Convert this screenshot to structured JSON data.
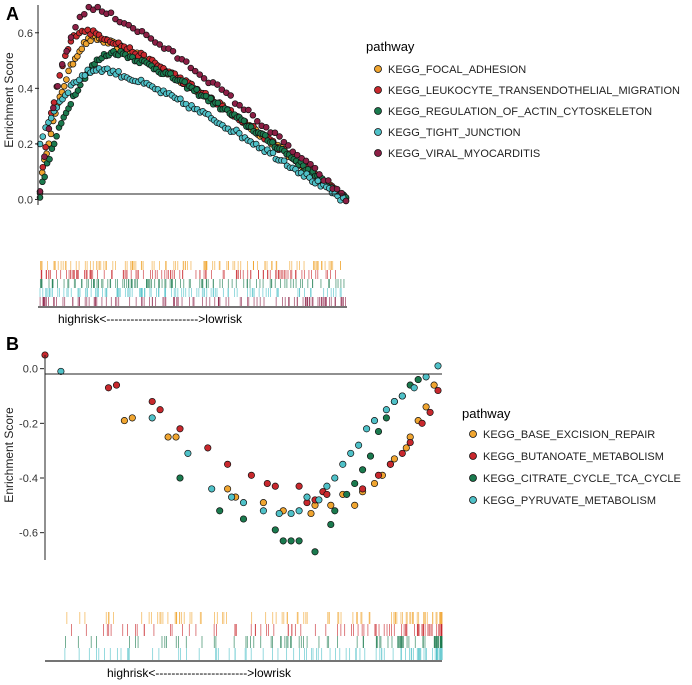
{
  "colors": {
    "orange": "#f0a530",
    "red": "#c8282d",
    "green": "#1a7a4e",
    "cyan": "#4fc1c8",
    "maroon": "#8c1f45"
  },
  "chart_data": [
    {
      "panel_label": "A",
      "type": "scatter",
      "ylabel": "Enrichment Score",
      "ylim": [
        -0.02,
        0.7
      ],
      "yticks": [
        0.0,
        0.2,
        0.4,
        0.6
      ],
      "ytick_labels": [
        "0.0",
        "0.2",
        "0.4",
        "0.6"
      ],
      "xlim": [
        0,
        1
      ],
      "legend_title": "pathway",
      "legend_position": "right",
      "axis_label": "highrisk<----------------------->lowrisk",
      "series": [
        {
          "name": "KEGG_FOCAL_ADHESION",
          "color": "#f0a530",
          "peak_x": 0.18,
          "peak": 0.58,
          "start": 0.03,
          "end": 0.0,
          "n": 140
        },
        {
          "name": "KEGG_LEUKOCYTE_TRANSENDOTHELIAL_MIGRATION",
          "color": "#c8282d",
          "peak_x": 0.14,
          "peak": 0.61,
          "start": 0.02,
          "end": 0.0,
          "n": 110
        },
        {
          "name": "KEGG_REGULATION_OF_ACTIN_CYTOSKELETON",
          "color": "#1a7a4e",
          "peak_x": 0.25,
          "peak": 0.53,
          "start": 0.01,
          "end": 0.0,
          "n": 130
        },
        {
          "name": "KEGG_TIGHT_JUNCTION",
          "color": "#4fc1c8",
          "peak_x": 0.2,
          "peak": 0.47,
          "start": 0.2,
          "end": -0.01,
          "n": 110
        },
        {
          "name": "KEGG_VIRAL_MYOCARDITIS",
          "color": "#8c1f45",
          "peak_x": 0.17,
          "peak": 0.69,
          "start": 0.02,
          "end": 0.0,
          "n": 70
        }
      ]
    },
    {
      "panel_label": "B",
      "type": "scatter",
      "ylabel": "Enrichment Score",
      "ylim": [
        -0.7,
        0.05
      ],
      "yticks": [
        0.0,
        -0.2,
        -0.4,
        -0.6
      ],
      "ytick_labels": [
        "0.0",
        "-0.2",
        "-0.4",
        "-0.6"
      ],
      "xlim": [
        0,
        1
      ],
      "legend_title": "pathway",
      "legend_position": "right",
      "axis_label": "highrisk<----------------------->lowrisk",
      "series": [
        {
          "name": "KEGG_BASE_EXCISION_REPAIR",
          "color": "#f0a530",
          "x": [
            0.2,
            0.22,
            0.31,
            0.33,
            0.46,
            0.48,
            0.55,
            0.6,
            0.67,
            0.68,
            0.72,
            0.75,
            0.78,
            0.8,
            0.83,
            0.85,
            0.87,
            0.88,
            0.91,
            0.92,
            0.94,
            0.96,
            0.98
          ],
          "y": [
            -0.19,
            -0.18,
            -0.25,
            -0.25,
            -0.44,
            -0.47,
            -0.49,
            -0.52,
            -0.53,
            -0.5,
            -0.5,
            -0.46,
            -0.5,
            -0.45,
            -0.42,
            -0.39,
            -0.35,
            -0.33,
            -0.29,
            -0.25,
            -0.19,
            -0.14,
            -0.06
          ]
        },
        {
          "name": "KEGG_BUTANOATE_METABOLISM",
          "color": "#c8282d",
          "x": [
            0.0,
            0.16,
            0.18,
            0.27,
            0.29,
            0.34,
            0.41,
            0.46,
            0.52,
            0.56,
            0.58,
            0.64,
            0.66,
            0.68,
            0.7,
            0.71,
            0.8,
            0.84,
            0.87,
            0.9,
            0.92,
            0.95,
            0.97,
            0.99
          ],
          "y": [
            0.05,
            -0.07,
            -0.06,
            -0.12,
            -0.15,
            -0.22,
            -0.29,
            -0.35,
            -0.39,
            -0.42,
            -0.43,
            -0.43,
            -0.49,
            -0.48,
            -0.45,
            -0.46,
            -0.44,
            -0.39,
            -0.35,
            -0.31,
            -0.27,
            -0.2,
            -0.16,
            -0.08
          ]
        },
        {
          "name": "KEGG_CITRATE_CYCLE_TCA_CYCLE",
          "color": "#1a7a4e",
          "x": [
            0.34,
            0.44,
            0.5,
            0.58,
            0.6,
            0.62,
            0.64,
            0.68,
            0.72,
            0.73,
            0.76,
            0.78,
            0.8,
            0.82,
            0.84,
            0.86,
            0.88,
            0.9,
            0.92,
            0.94
          ],
          "y": [
            -0.4,
            -0.52,
            -0.55,
            -0.59,
            -0.63,
            -0.63,
            -0.63,
            -0.67,
            -0.57,
            -0.52,
            -0.46,
            -0.42,
            -0.37,
            -0.32,
            -0.23,
            -0.18,
            -0.12,
            -0.1,
            -0.06,
            -0.04
          ]
        },
        {
          "name": "KEGG_PYRUVATE_METABOLISM",
          "color": "#4fc1c8",
          "x": [
            0.04,
            0.27,
            0.36,
            0.42,
            0.47,
            0.5,
            0.55,
            0.59,
            0.62,
            0.64,
            0.66,
            0.69,
            0.71,
            0.73,
            0.75,
            0.77,
            0.79,
            0.81,
            0.83,
            0.86,
            0.88,
            0.9,
            0.93,
            0.96,
            0.99
          ],
          "y": [
            -0.01,
            -0.18,
            -0.31,
            -0.44,
            -0.47,
            -0.49,
            -0.52,
            -0.53,
            -0.53,
            -0.52,
            -0.47,
            -0.48,
            -0.43,
            -0.4,
            -0.35,
            -0.31,
            -0.28,
            -0.22,
            -0.19,
            -0.15,
            -0.12,
            -0.1,
            -0.07,
            -0.03,
            0.01
          ]
        }
      ]
    }
  ]
}
